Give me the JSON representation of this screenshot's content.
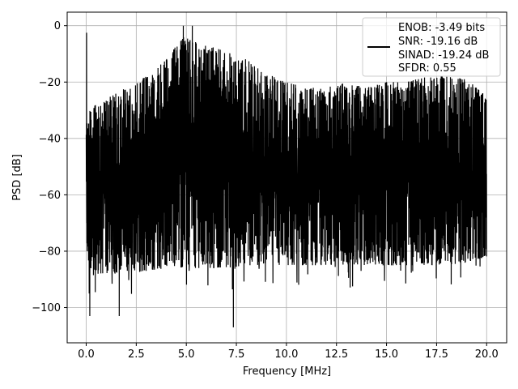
{
  "chart_data": {
    "type": "line",
    "xlabel": "Frequency [MHz]",
    "ylabel": "PSD [dB]",
    "xlim": [
      -0.95,
      21.0
    ],
    "ylim": [
      -112.5,
      4.8
    ],
    "xticks": [
      0.0,
      2.5,
      5.0,
      7.5,
      10.0,
      12.5,
      15.0,
      17.5,
      20.0
    ],
    "xtick_labels": [
      "0.0",
      "2.5",
      "5.0",
      "7.5",
      "10.0",
      "12.5",
      "15.0",
      "17.5",
      "20.0"
    ],
    "yticks": [
      0,
      -20,
      -40,
      -60,
      -80,
      -100
    ],
    "ytick_labels": [
      "0",
      "−20",
      "−40",
      "−60",
      "−80",
      "−100"
    ],
    "grid": true,
    "legend_position": "top-right",
    "legend_entries": [
      "ENOB: -3.49 bits",
      "SNR: -19.16 dB",
      "SINAD: -19.24 dB",
      "SFDR: 0.55"
    ],
    "series": [
      {
        "color": "#000000",
        "envelope": {
          "x": [
            0.0,
            0.1,
            0.5,
            1.0,
            2.0,
            3.0,
            4.0,
            4.5,
            5.0,
            5.5,
            6.0,
            7.0,
            8.0,
            9.0,
            10.0,
            11.0,
            12.0,
            13.0,
            14.0,
            15.0,
            16.0,
            17.0,
            18.0,
            19.0,
            20.0
          ],
          "upper": [
            -35,
            -30,
            -28,
            -26,
            -22,
            -18,
            -12,
            -7,
            -3,
            -5,
            -7,
            -9,
            -12,
            -17,
            -20,
            -22,
            -22,
            -20,
            -22,
            -20,
            -20,
            -18,
            -18,
            -19,
            -25
          ],
          "lower": [
            -80,
            -85,
            -88,
            -88,
            -88,
            -87,
            -86,
            -86,
            -86,
            -86,
            -86,
            -86,
            -85,
            -85,
            -85,
            -85,
            -85,
            -85,
            -85,
            -85,
            -85,
            -85,
            -85,
            -84,
            -82
          ]
        },
        "spikes": [
          {
            "x": 0.02,
            "y": -2.5
          },
          {
            "x": 0.03,
            "y": -70
          },
          {
            "x": 0.15,
            "y": -95
          },
          {
            "x": 0.18,
            "y": -103
          },
          {
            "x": 1.65,
            "y": -103
          },
          {
            "x": 4.85,
            "y": 0
          },
          {
            "x": 5.3,
            "y": 0
          },
          {
            "x": 7.35,
            "y": -107
          }
        ]
      }
    ]
  }
}
